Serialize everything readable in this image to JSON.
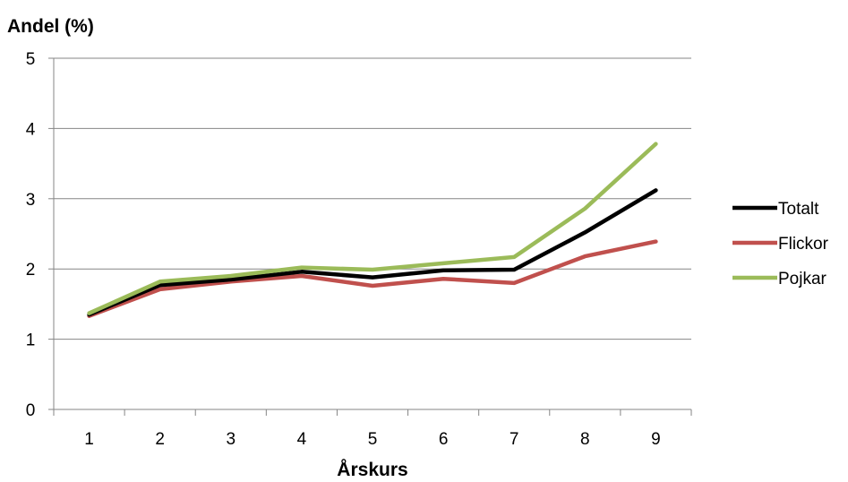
{
  "chart_data": {
    "type": "line",
    "title": "",
    "ylabel": "Andel (%)",
    "xlabel": "Årskurs",
    "categories": [
      "1",
      "2",
      "3",
      "4",
      "5",
      "6",
      "7",
      "8",
      "9"
    ],
    "yticks": [
      "0",
      "1",
      "2",
      "3",
      "4",
      "5"
    ],
    "ylim": [
      0,
      5
    ],
    "grid": true,
    "legend_position": "right",
    "series": [
      {
        "name": "Totalt",
        "color": "#000000",
        "values": [
          1.35,
          1.77,
          1.85,
          1.96,
          1.88,
          1.98,
          1.99,
          2.52,
          3.12
        ]
      },
      {
        "name": "Flickor",
        "color": "#c0504d",
        "values": [
          1.33,
          1.71,
          1.82,
          1.9,
          1.76,
          1.86,
          1.8,
          2.18,
          2.39
        ]
      },
      {
        "name": "Pojkar",
        "color": "#9bbb59",
        "values": [
          1.37,
          1.82,
          1.9,
          2.02,
          1.99,
          2.08,
          2.17,
          2.86,
          3.78
        ]
      }
    ]
  }
}
